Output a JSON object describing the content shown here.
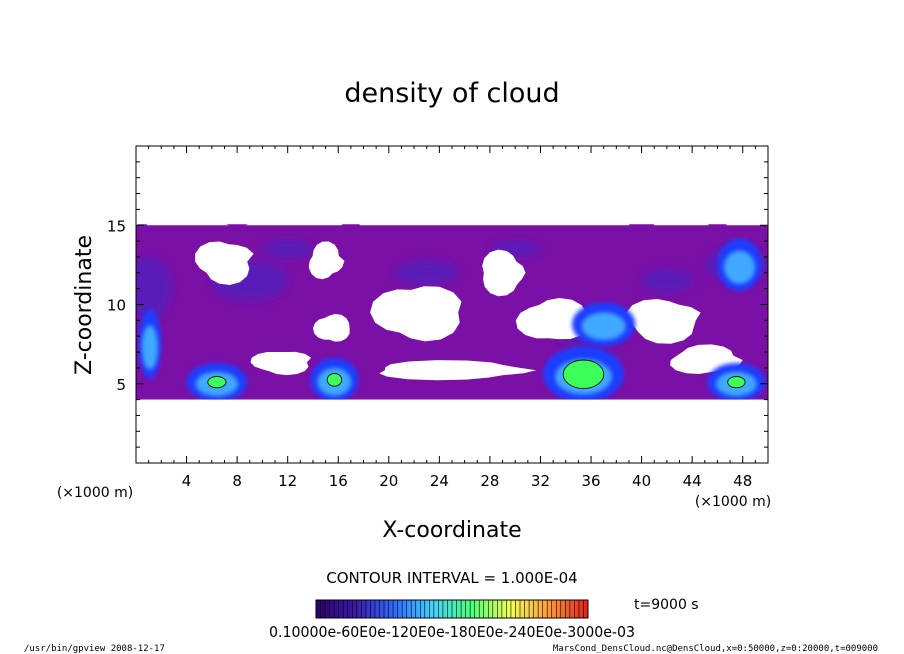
{
  "chart_data": {
    "type": "heatmap",
    "title": "density of cloud",
    "xlabel": "X-coordinate",
    "ylabel": "Z-coordinate",
    "x_unit_left": "(×1000 m)",
    "x_unit_right": "(×1000 m)",
    "xlim": [
      0,
      50
    ],
    "ylim": [
      0,
      20
    ],
    "x_ticks": [
      4,
      8,
      12,
      16,
      20,
      24,
      28,
      32,
      36,
      40,
      44,
      48
    ],
    "y_ticks": [
      5,
      10,
      15
    ],
    "cloud_top": 15,
    "cloud_base": 4,
    "colormap": [
      "#2a006e",
      "#3c1aa8",
      "#2e6bff",
      "#43d3ff",
      "#4dff7a",
      "#f0ff55",
      "#ff9a3a",
      "#e0201c"
    ],
    "fill_colors": {
      "background": "#7a10a6",
      "medium": "#5a1ab8",
      "dense": "#1e3cff",
      "denser": "#40a8ff",
      "peak": "#3dff5a",
      "line": "#000000"
    },
    "clear_regions": [
      {
        "x": [
          4.5,
          9.5
        ],
        "z": [
          11.2,
          14.2
        ]
      },
      {
        "x": [
          13.5,
          16.5
        ],
        "z": [
          11.5,
          14.0
        ]
      },
      {
        "x": [
          18.5,
          26
        ],
        "z": [
          7.5,
          11.5
        ]
      },
      {
        "x": [
          27,
          31
        ],
        "z": [
          10.5,
          13.5
        ]
      },
      {
        "x": [
          30,
          36
        ],
        "z": [
          7.5,
          10.5
        ]
      },
      {
        "x": [
          38.5,
          45
        ],
        "z": [
          7.5,
          10.5
        ]
      },
      {
        "x": [
          42,
          48
        ],
        "z": [
          5.5,
          7.5
        ]
      },
      {
        "x": [
          9,
          14
        ],
        "z": [
          5.5,
          7.2
        ]
      },
      {
        "x": [
          18,
          32
        ],
        "z": [
          5.2,
          6.5
        ]
      },
      {
        "x": [
          14,
          17
        ],
        "z": [
          7.5,
          9.5
        ]
      }
    ],
    "dense_cores": [
      {
        "x": [
          4,
          8.8
        ],
        "z": [
          4.0,
          6.2
        ],
        "peak": 0.3
      },
      {
        "x": [
          13.8,
          17.6
        ],
        "z": [
          4.0,
          6.5
        ],
        "peak": 0.3
      },
      {
        "x": [
          32.2,
          38.6
        ],
        "z": [
          4.0,
          7.2
        ],
        "peak": 0.6
      },
      {
        "x": [
          45.2,
          49.8
        ],
        "z": [
          4.0,
          6.2
        ],
        "peak": 0.3
      },
      {
        "x": [
          0.2,
          2.0
        ],
        "z": [
          5.5,
          9.5
        ],
        "peak": 0.2
      },
      {
        "x": [
          34.5,
          39.5
        ],
        "z": [
          7.5,
          10
        ],
        "peak": 0.1
      },
      {
        "x": [
          46,
          49.5
        ],
        "z": [
          11,
          14
        ],
        "peak": 0.1
      }
    ]
  },
  "contour_interval": "CONTOUR INTERVAL = 1.000E-04",
  "time_label": "t=9000 s",
  "colorbar_labels": "0.10000e-60E0e-120E0e-180E0e-240E0e-3000e-03",
  "footer_left": "/usr/bin/gpview  2008-12-17",
  "footer_right": "MarsCond_DensCloud.nc@DensCloud,x=0:50000,z=0:20000,t=009000"
}
